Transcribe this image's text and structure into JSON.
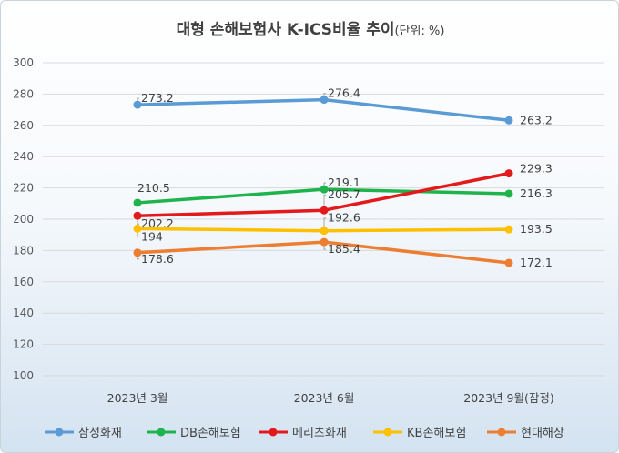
{
  "chart_data": {
    "type": "line",
    "title": "대형 손해보험사 K-ICS비율 추이",
    "title_unit": "(단위: %)",
    "categories": [
      "2023년 3월",
      "2023년 6월",
      "2023년 9월(잠정)"
    ],
    "ylim": [
      100,
      300
    ],
    "yticks": [
      "100",
      "120",
      "140",
      "160",
      "180",
      "200",
      "220",
      "240",
      "260",
      "280",
      "300"
    ],
    "grid": true,
    "legend_position": "bottom",
    "series": [
      {
        "name": "삼성화재",
        "color": "#5b9bd5",
        "values": [
          273.2,
          276.4,
          263.2
        ],
        "labels": [
          "273.2",
          "276.4",
          "263.2"
        ]
      },
      {
        "name": "DB손해보험",
        "color": "#1fb34e",
        "values": [
          210.5,
          219.1,
          216.3
        ],
        "labels": [
          "210.5",
          "219.1",
          "216.3"
        ]
      },
      {
        "name": "메리츠화재",
        "color": "#e31a1c",
        "values": [
          202.2,
          205.7,
          229.3
        ],
        "labels": [
          "202.2",
          "205.7",
          "229.3"
        ]
      },
      {
        "name": "KB손해보험",
        "color": "#ffc000",
        "values": [
          194,
          192.6,
          193.5
        ],
        "labels": [
          "194",
          "192.6",
          "193.5"
        ]
      },
      {
        "name": "현대해상",
        "color": "#ed7d31",
        "values": [
          178.6,
          185.4,
          172.1
        ],
        "labels": [
          "178.6",
          "185.4",
          "172.1"
        ]
      }
    ]
  }
}
